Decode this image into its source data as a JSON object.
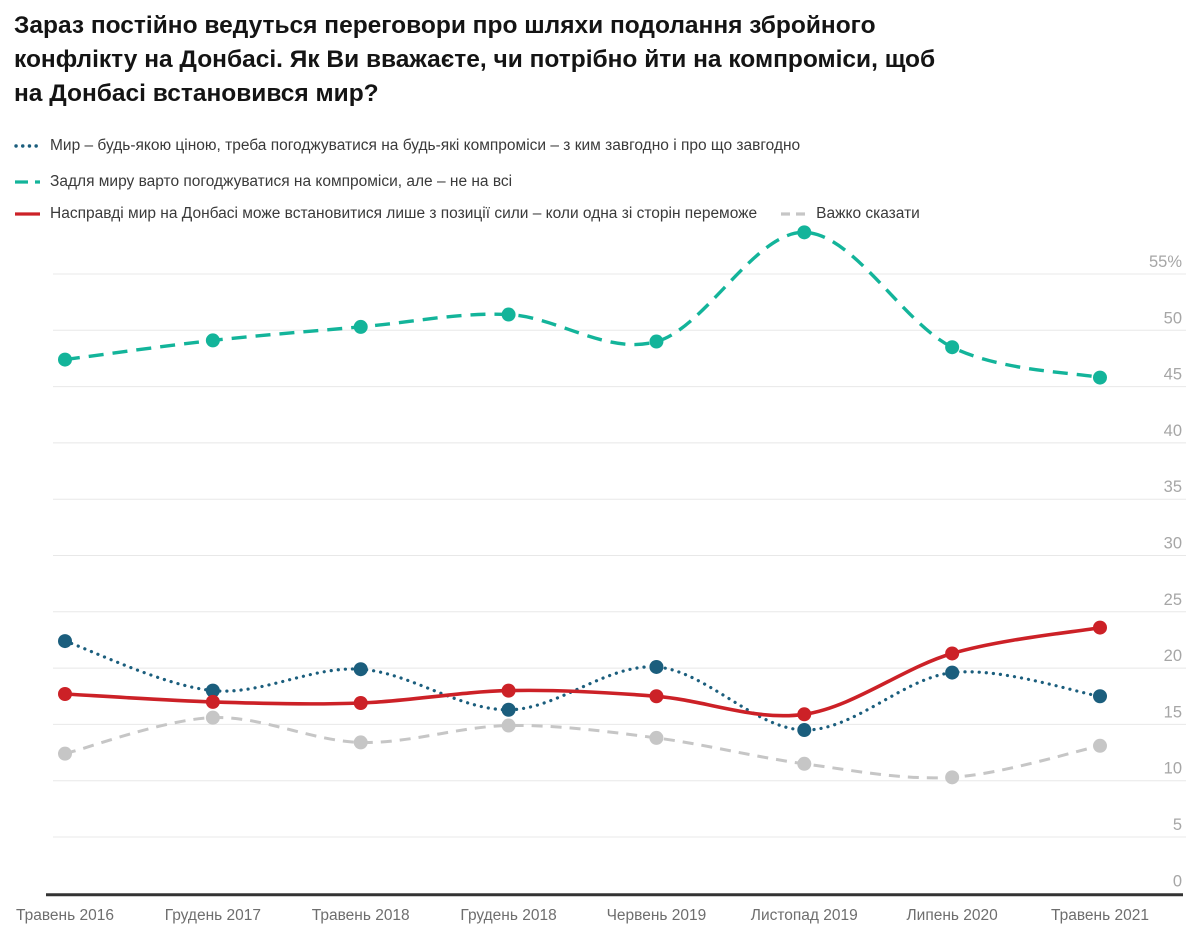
{
  "title_lines": [
    "Зараз постійно ведуться переговори про шляхи подолання збройного",
    "конфлікту на Донбасі. Як Ви вважаєте, чи потрібно йти на компроміси, щоб",
    "на Донбасі встановився мир?"
  ],
  "colors": {
    "background": "#ffffff",
    "title_text": "#141414",
    "legend_text": "#3a3a3a",
    "gridline": "#e8e8e8",
    "axis_line": "#333333",
    "y_tick_text": "#a6a6a6",
    "x_tick_text": "#6e6e6e"
  },
  "chart_data": {
    "type": "line",
    "title": "Зараз постійно ведуться переговори про шляхи подолання збройного конфлікту на Донбасі. Як Ви вважаєте, чи потрібно йти на компроміси, щоб на Донбасі встановився мир?",
    "categories": [
      "Травень 2016",
      "Грудень 2017",
      "Травень 2018",
      "Грудень 2018",
      "Червень 2019",
      "Листопад 2019",
      "Липень 2020",
      "Травень 2021"
    ],
    "series": [
      {
        "name": "Мир – будь-якою ціною, треба погоджуватися на будь-які компроміси – з ким завгодно і про що завгодно",
        "color": "#1b5e7d",
        "line_style": "dotted",
        "values": [
          22.4,
          18.0,
          19.9,
          16.3,
          20.1,
          14.5,
          19.6,
          17.5
        ]
      },
      {
        "name": "Задля миру варто погоджуватися на компроміси, але – не на всі",
        "color": "#13b49a",
        "line_style": "dashed",
        "values": [
          47.4,
          49.1,
          50.3,
          51.4,
          49.0,
          58.7,
          48.5,
          45.8
        ]
      },
      {
        "name": "Насправді мир на Донбасі може встановитися лише з позиції сили – коли одна зі сторін переможе",
        "color": "#cc2127",
        "line_style": "solid",
        "values": [
          17.7,
          17.0,
          16.9,
          18.0,
          17.5,
          15.9,
          21.3,
          23.6
        ]
      },
      {
        "name": "Важко сказати",
        "color": "#c6c6c6",
        "line_style": "dashed-short",
        "values": [
          12.4,
          15.6,
          13.4,
          14.9,
          13.8,
          11.5,
          10.3,
          13.1
        ]
      }
    ],
    "yticks": [
      0,
      5,
      10,
      15,
      20,
      25,
      30,
      35,
      40,
      45,
      50,
      55
    ],
    "ytick_top_suffix": "%",
    "ylim": [
      0,
      60
    ],
    "grid": true,
    "legend_position": "top-left"
  }
}
